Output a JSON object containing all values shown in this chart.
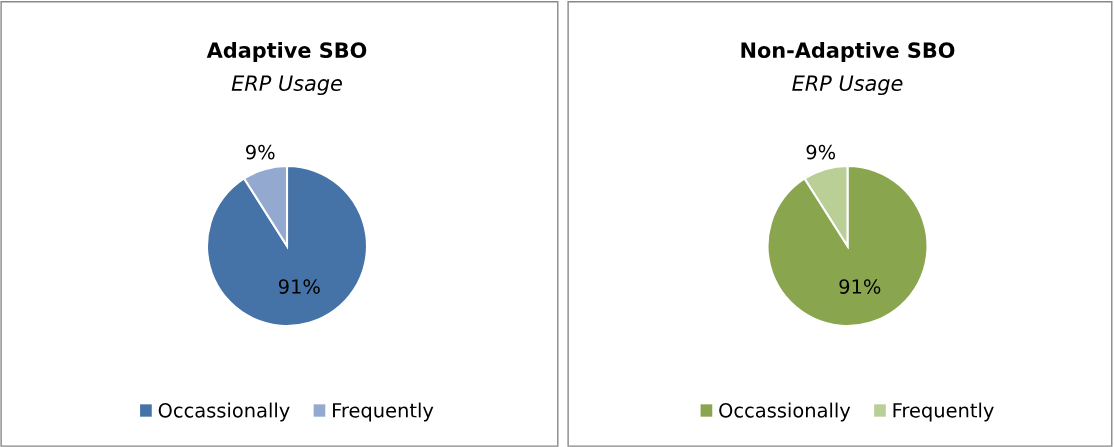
{
  "chart_data": [
    {
      "type": "pie",
      "title": "Adaptive SBO",
      "subtitle": "ERP Usage",
      "categories": [
        "Occassionally",
        "Frequently"
      ],
      "values": [
        91,
        9
      ],
      "colors": [
        "#4572a7",
        "#93a9cf"
      ],
      "value_labels": [
        "91%",
        "9%"
      ],
      "legend": "bottom"
    },
    {
      "type": "pie",
      "title": "Non-Adaptive SBO",
      "subtitle": "ERP Usage",
      "categories": [
        "Occassionally",
        "Frequently"
      ],
      "values": [
        91,
        9
      ],
      "colors": [
        "#89a54e",
        "#b9cf95"
      ],
      "value_labels": [
        "91%",
        "9%"
      ],
      "legend": "bottom"
    }
  ]
}
